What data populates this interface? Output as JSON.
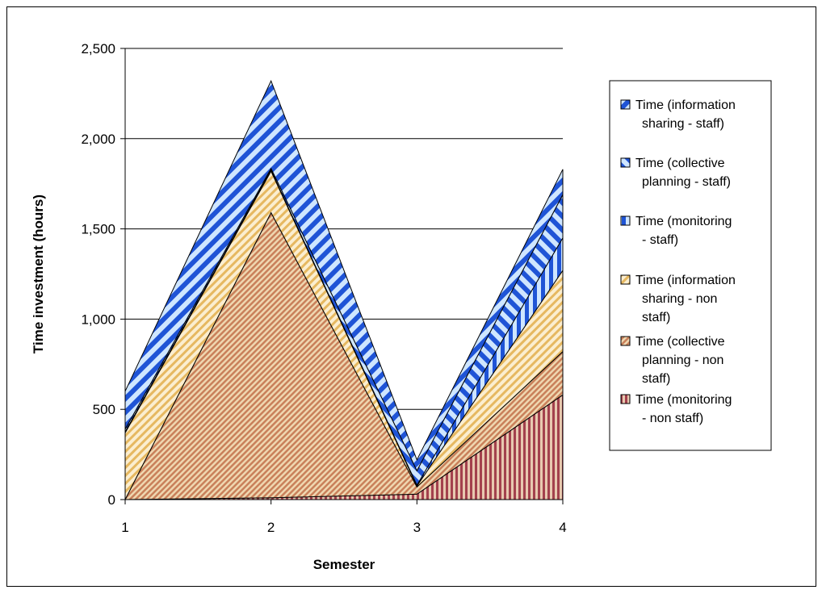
{
  "chart_data": {
    "type": "area",
    "stacked": true,
    "xlabel": "Semester",
    "ylabel": "Time investment (hours)",
    "x": [
      "1",
      "2",
      "3",
      "4"
    ],
    "ylim": [
      0,
      2500
    ],
    "yticks": [
      "0",
      "500",
      "1,000",
      "1,500",
      "2,000",
      "2,500"
    ],
    "grid": true,
    "legend_position": "right",
    "series": [
      {
        "name": "Time (monitoring - non staff)",
        "values": [
          0,
          10,
          30,
          580
        ],
        "color": "#a3414d",
        "pattern": "vertical"
      },
      {
        "name": "Time (collective planning - non staff)",
        "values": [
          0,
          1580,
          40,
          240
        ],
        "color": "#d98c4d",
        "pattern": "diag-fine"
      },
      {
        "name": "Time (information sharing - non staff)",
        "values": [
          370,
          230,
          5,
          450
        ],
        "color": "#f0cc66",
        "pattern": "diag"
      },
      {
        "name": "Time (monitoring - staff)",
        "values": [
          5,
          5,
          5,
          180
        ],
        "color": "#1f54d6",
        "pattern": "vertical"
      },
      {
        "name": "Time (collective planning - staff)",
        "values": [
          15,
          10,
          80,
          240
        ],
        "color": "#1f54d6",
        "pattern": "diag-back"
      },
      {
        "name": "Time (information sharing - staff)",
        "values": [
          210,
          485,
          60,
          140
        ],
        "color": "#1f54d6",
        "pattern": "diag"
      }
    ],
    "legend": [
      {
        "lines": [
          "Time (information",
          "sharing - staff)"
        ],
        "series": 5
      },
      {
        "lines": [
          "Time (collective",
          "planning - staff)"
        ],
        "series": 4
      },
      {
        "lines": [
          "Time (monitoring",
          "- staff)"
        ],
        "series": 3
      },
      {
        "lines": [
          "Time (information",
          "sharing - non",
          "staff)"
        ],
        "series": 2
      },
      {
        "lines": [
          "Time (collective",
          "planning - non",
          "staff)"
        ],
        "series": 1
      },
      {
        "lines": [
          "Time (monitoring",
          "- non staff)"
        ],
        "series": 0
      }
    ]
  }
}
